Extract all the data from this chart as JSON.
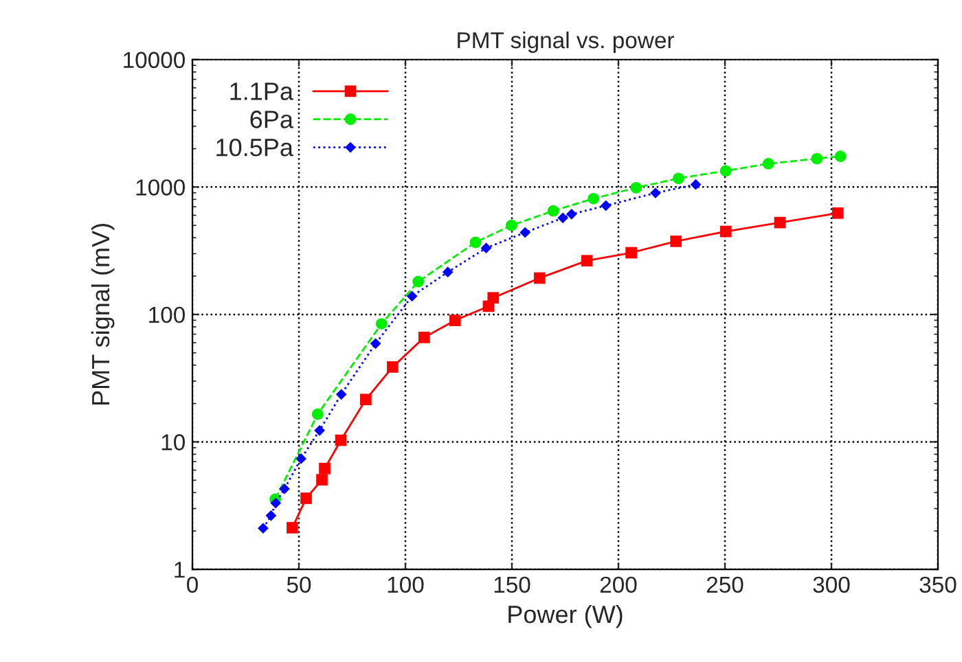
{
  "chart_data": {
    "type": "line",
    "title": "PMT signal vs. power",
    "xlabel": "Power (W)",
    "ylabel": "PMT signal (mV)",
    "log": "y",
    "xlim": [
      0,
      350
    ],
    "xticks": [
      0,
      50,
      100,
      150,
      200,
      250,
      300,
      350
    ],
    "ylim": [
      1,
      10000
    ],
    "yticks": [
      1,
      10,
      100,
      1000,
      10000
    ],
    "grid": true,
    "legend": "top left",
    "series": [
      {
        "name": "1.1Pa",
        "color": "#ff0000",
        "marker": "square",
        "line_style": "solid",
        "x": [
          46.9,
          53.4,
          60.8,
          62.1,
          69.7,
          81.4,
          94,
          108.8,
          123.3,
          139,
          141.2,
          163,
          185.2,
          206,
          227,
          250.4,
          275.8,
          303
        ],
        "values": [
          2.12,
          3.61,
          5.04,
          6.18,
          10.3,
          21.5,
          38.7,
          66,
          89.8,
          116,
          135,
          193,
          264,
          305,
          375,
          448,
          526,
          624
        ]
      },
      {
        "name": "6Pa",
        "color": "#00ee00",
        "marker": "circle",
        "line_style": "dashed",
        "x": [
          38.9,
          58.8,
          88.8,
          106,
          132.9,
          149.8,
          169.4,
          188.3,
          208.3,
          228.2,
          250.4,
          270.4,
          293.2,
          304.2
        ],
        "values": [
          3.55,
          16.5,
          84.5,
          181,
          368,
          500,
          650,
          811,
          987,
          1169,
          1340,
          1524,
          1670,
          1743
        ]
      },
      {
        "name": "10.5Pa",
        "color": "#0000ff",
        "marker": "diamond",
        "line_style": "dotted",
        "x": [
          33.2,
          36.9,
          39.1,
          43.2,
          51,
          59.7,
          69.9,
          86,
          103.1,
          119.9,
          137.9,
          156.2,
          173.9,
          178,
          194.1,
          217.4,
          236.3
        ],
        "values": [
          2.1,
          2.64,
          3.31,
          4.28,
          7.38,
          12.3,
          23.6,
          59.1,
          139,
          215,
          332,
          440,
          572,
          613,
          714,
          898,
          1047
        ]
      }
    ]
  }
}
